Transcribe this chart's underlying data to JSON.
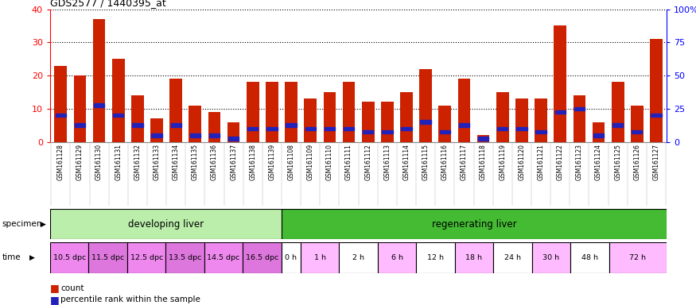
{
  "title": "GDS2577 / 1440395_at",
  "samples": [
    "GSM161128",
    "GSM161129",
    "GSM161130",
    "GSM161131",
    "GSM161132",
    "GSM161133",
    "GSM161134",
    "GSM161135",
    "GSM161136",
    "GSM161137",
    "GSM161138",
    "GSM161139",
    "GSM161108",
    "GSM161109",
    "GSM161110",
    "GSM161111",
    "GSM161112",
    "GSM161113",
    "GSM161114",
    "GSM161115",
    "GSM161116",
    "GSM161117",
    "GSM161118",
    "GSM161119",
    "GSM161120",
    "GSM161121",
    "GSM161122",
    "GSM161123",
    "GSM161124",
    "GSM161125",
    "GSM161126",
    "GSM161127"
  ],
  "counts": [
    23,
    20,
    37,
    25,
    14,
    7,
    19,
    11,
    9,
    6,
    18,
    18,
    18,
    13,
    15,
    18,
    12,
    12,
    15,
    22,
    11,
    19,
    2,
    15,
    13,
    13,
    35,
    14,
    6,
    18,
    11,
    31
  ],
  "percentile_ranks": [
    8,
    5,
    11,
    8,
    5,
    2,
    5,
    2,
    2,
    1,
    4,
    4,
    5,
    4,
    4,
    4,
    3,
    3,
    4,
    6,
    3,
    5,
    1,
    4,
    4,
    3,
    9,
    10,
    2,
    5,
    3,
    8
  ],
  "bar_color": "#cc2200",
  "dot_color": "#2222bb",
  "ylim_left": [
    0,
    40
  ],
  "ylim_right": [
    0,
    100
  ],
  "yticks_left": [
    0,
    10,
    20,
    30,
    40
  ],
  "yticks_right": [
    0,
    25,
    50,
    75,
    100
  ],
  "yticklabels_right": [
    "0",
    "25",
    "50",
    "75",
    "100%"
  ],
  "plot_bg": "#ffffff",
  "tick_area_bg": "#cccccc",
  "specimen_bg_light": "#bbeeaa",
  "specimen_bg_dark": "#44bb33",
  "specimen_groups": [
    {
      "label": "developing liver",
      "start": 0,
      "end": 12,
      "color": "#bbeeaa"
    },
    {
      "label": "regenerating liver",
      "start": 12,
      "end": 32,
      "color": "#44bb33"
    }
  ],
  "time_groups": [
    {
      "label": "10.5 dpc",
      "start": 0,
      "end": 2,
      "color": "#ee88ee"
    },
    {
      "label": "11.5 dpc",
      "start": 2,
      "end": 4,
      "color": "#dd77dd"
    },
    {
      "label": "12.5 dpc",
      "start": 4,
      "end": 6,
      "color": "#ee88ee"
    },
    {
      "label": "13.5 dpc",
      "start": 6,
      "end": 8,
      "color": "#dd77dd"
    },
    {
      "label": "14.5 dpc",
      "start": 8,
      "end": 10,
      "color": "#ee88ee"
    },
    {
      "label": "16.5 dpc",
      "start": 10,
      "end": 12,
      "color": "#dd77dd"
    },
    {
      "label": "0 h",
      "start": 12,
      "end": 13,
      "color": "#ffffff"
    },
    {
      "label": "1 h",
      "start": 13,
      "end": 15,
      "color": "#ffbbff"
    },
    {
      "label": "2 h",
      "start": 15,
      "end": 17,
      "color": "#ffffff"
    },
    {
      "label": "6 h",
      "start": 17,
      "end": 19,
      "color": "#ffbbff"
    },
    {
      "label": "12 h",
      "start": 19,
      "end": 21,
      "color": "#ffffff"
    },
    {
      "label": "18 h",
      "start": 21,
      "end": 23,
      "color": "#ffbbff"
    },
    {
      "label": "24 h",
      "start": 23,
      "end": 25,
      "color": "#ffffff"
    },
    {
      "label": "30 h",
      "start": 25,
      "end": 27,
      "color": "#ffbbff"
    },
    {
      "label": "48 h",
      "start": 27,
      "end": 29,
      "color": "#ffffff"
    },
    {
      "label": "72 h",
      "start": 29,
      "end": 32,
      "color": "#ffbbff"
    }
  ]
}
